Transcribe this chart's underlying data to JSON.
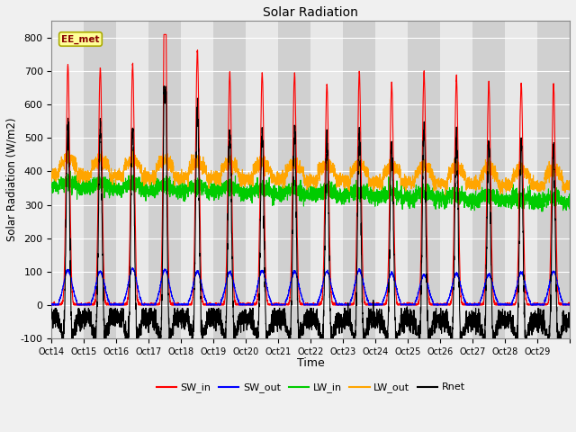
{
  "title": "Solar Radiation",
  "xlabel": "Time",
  "ylabel": "Solar Radiation (W/m2)",
  "ylim": [
    -100,
    850
  ],
  "yticks": [
    -100,
    0,
    100,
    200,
    300,
    400,
    500,
    600,
    700,
    800
  ],
  "x_labels": [
    "Oct 14",
    "Oct 15",
    "Oct 16",
    "Oct 17",
    "Oct 18",
    "Oct 19",
    "Oct 20",
    "Oct 21",
    "Oct 22",
    "Oct 23",
    "Oct 24",
    "Oct 25",
    "Oct 26",
    "Oct 27",
    "Oct 28",
    "Oct 29"
  ],
  "n_days": 16,
  "pts_per_day": 288,
  "colors": {
    "SW_in": "#ff0000",
    "SW_out": "#0000ff",
    "LW_in": "#00cc00",
    "LW_out": "#ffa500",
    "Rnet": "#000000"
  },
  "station_label": "EE_met",
  "peaks_SW": [
    720,
    710,
    720,
    780,
    760,
    695,
    695,
    695,
    660,
    695,
    665,
    700,
    680,
    670,
    665,
    660
  ],
  "peaks_SW_out": [
    105,
    100,
    108,
    105,
    100,
    98,
    102,
    100,
    100,
    105,
    95,
    90,
    95,
    92,
    98,
    100
  ],
  "lw_in_base": 355,
  "lw_out_base": 390,
  "lw_in_decline": 50,
  "lw_out_decline": 35,
  "night_rnet": -60,
  "plot_bg_light": "#e8e8e8",
  "plot_bg_dark": "#d0d0d0",
  "grid_color": "#ffffff",
  "fig_bg": "#f0f0f0"
}
